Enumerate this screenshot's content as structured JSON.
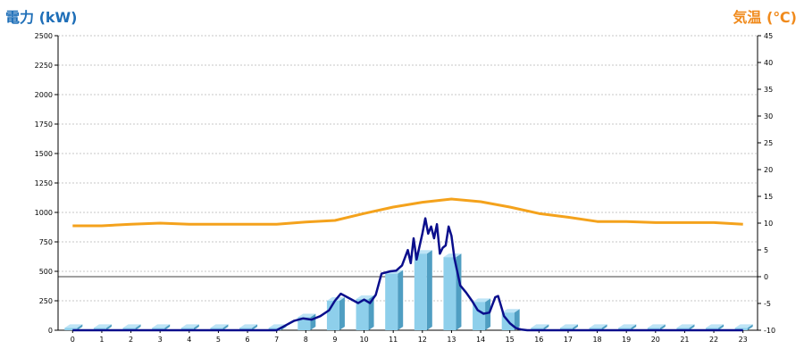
{
  "chart_data": {
    "type": "bar",
    "ylabel_left": "電力 (kW)",
    "ylabel_right": "気温 (℃)",
    "x_ticks": [
      "0",
      "1",
      "2",
      "3",
      "4",
      "5",
      "6",
      "7",
      "8",
      "9",
      "10",
      "11",
      "12",
      "13",
      "14",
      "15",
      "16",
      "17",
      "18",
      "19",
      "20",
      "21",
      "22",
      "23"
    ],
    "left_axis": {
      "min": 0,
      "max": 2500,
      "ticks": [
        0,
        250,
        500,
        750,
        1000,
        1250,
        1500,
        1750,
        2000,
        2250,
        2500
      ]
    },
    "right_axis": {
      "min": -10,
      "max": 45,
      "ticks": [
        -10,
        -5,
        0,
        5,
        10,
        15,
        20,
        25,
        30,
        35,
        40,
        45
      ]
    },
    "grid": true,
    "series": [
      {
        "kind": "bar",
        "axis": "left",
        "x": [
          0,
          1,
          2,
          3,
          4,
          5,
          6,
          7,
          8,
          9,
          10,
          11,
          12,
          13,
          14,
          15,
          16,
          17,
          18,
          19,
          20,
          21,
          22,
          23
        ],
        "values": [
          20,
          20,
          20,
          20,
          20,
          20,
          20,
          20,
          110,
          250,
          265,
          480,
          650,
          620,
          240,
          150,
          20,
          20,
          20,
          20,
          20,
          20,
          20,
          20
        ]
      },
      {
        "kind": "line",
        "axis": "left",
        "x": [
          0,
          7,
          7.3,
          7.6,
          7.9,
          8.2,
          8.5,
          8.8,
          9.0,
          9.2,
          9.5,
          9.8,
          10.0,
          10.2,
          10.4,
          10.6,
          10.9,
          11.1,
          11.3,
          11.5,
          11.6,
          11.7,
          11.8,
          12.0,
          12.1,
          12.2,
          12.3,
          12.4,
          12.5,
          12.6,
          12.7,
          12.8,
          12.9,
          13.0,
          13.1,
          13.3,
          13.5,
          13.7,
          13.9,
          14.1,
          14.3,
          14.5,
          14.6,
          14.8,
          15.0,
          15.2,
          15.4,
          15.6,
          23
        ],
        "values": [
          0,
          0,
          40,
          80,
          100,
          90,
          120,
          170,
          250,
          310,
          270,
          230,
          260,
          230,
          300,
          480,
          500,
          505,
          550,
          680,
          570,
          780,
          600,
          820,
          950,
          820,
          880,
          780,
          900,
          650,
          700,
          720,
          880,
          800,
          610,
          380,
          320,
          250,
          170,
          140,
          150,
          280,
          290,
          120,
          60,
          20,
          5,
          0,
          0
        ]
      },
      {
        "kind": "line",
        "axis": "right",
        "x": [
          0,
          1,
          2,
          3,
          4,
          5,
          6,
          7,
          8,
          9,
          10,
          11,
          12,
          13,
          14,
          15,
          16,
          17,
          18,
          19,
          20,
          21,
          22,
          23
        ],
        "values": [
          9.5,
          9.5,
          9.8,
          10.0,
          9.8,
          9.8,
          9.8,
          9.8,
          10.2,
          10.5,
          11.8,
          13.0,
          13.9,
          14.5,
          14.0,
          13.0,
          11.8,
          11.1,
          10.3,
          10.3,
          10.1,
          10.1,
          10.1,
          9.8
        ]
      }
    ]
  },
  "colors": {
    "bar_face": "#8ecfeb",
    "bar_side": "#4f9ec2",
    "bar_top": "#bde4f6",
    "power_line": "#0a0e8c",
    "temp_line": "#f4a21c",
    "left_title": "#1f6fb8",
    "right_title": "#f08a1c"
  }
}
